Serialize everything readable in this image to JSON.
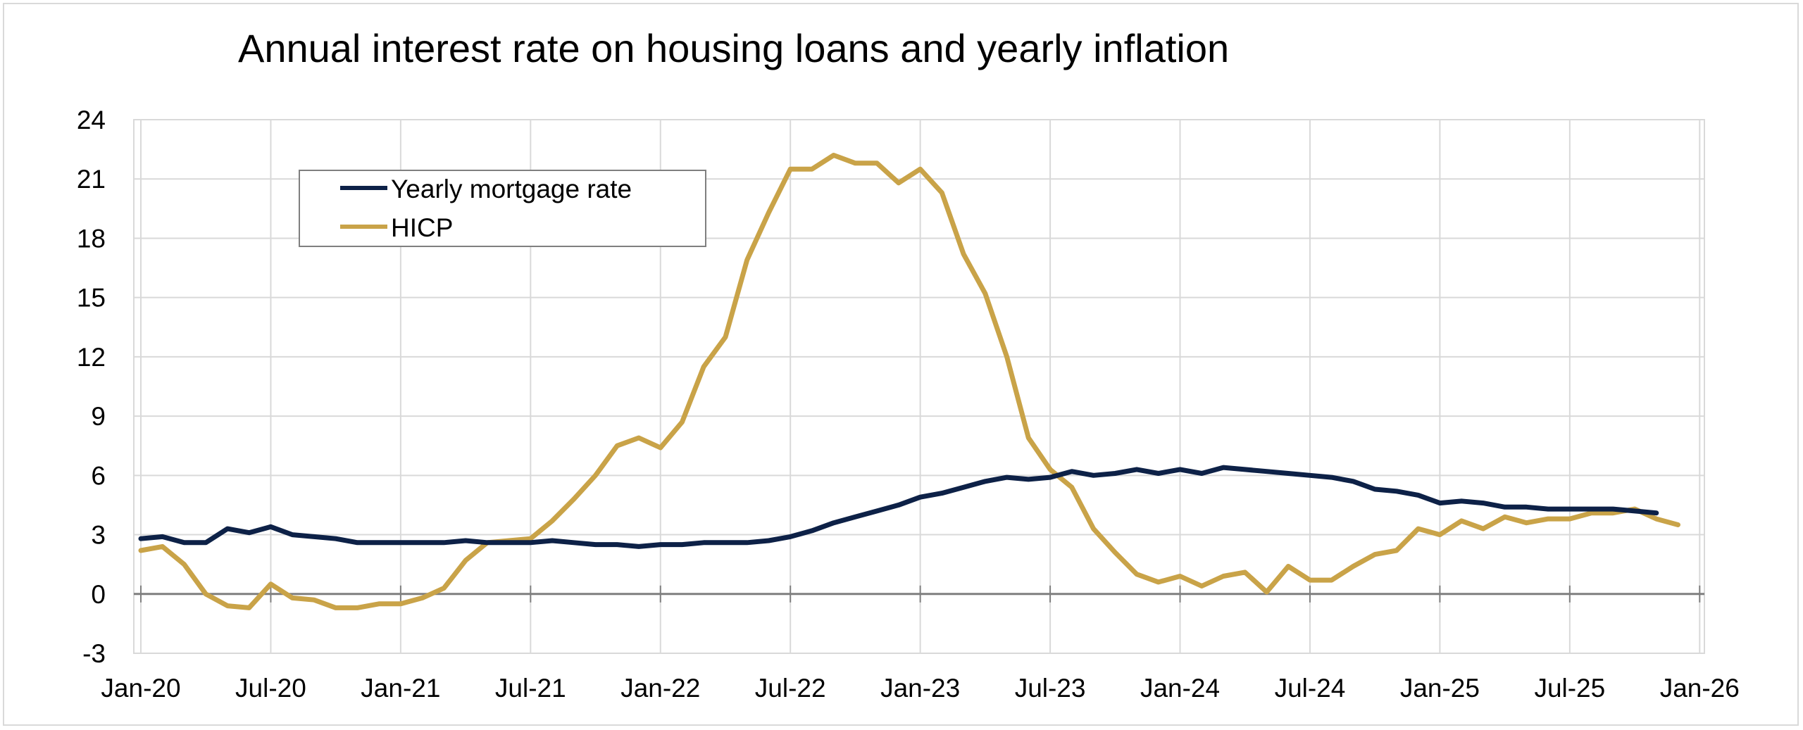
{
  "chart_data": {
    "type": "line",
    "title": "Annual interest rate on housing loans and yearly inflation",
    "xlabel": "",
    "ylabel": "",
    "ylim": [
      -3,
      24
    ],
    "yticks": [
      -3,
      0,
      3,
      6,
      9,
      12,
      15,
      18,
      21,
      24
    ],
    "x_tick_labels": [
      "Jan-20",
      "Jul-20",
      "Jan-21",
      "Jul-21",
      "Jan-22",
      "Jul-22",
      "Jan-23",
      "Jul-23",
      "Jan-24",
      "Jul-24",
      "Jan-25",
      "Jul-25",
      "Jan-26"
    ],
    "grid": true,
    "legend_position": "top-left",
    "x": [
      "2020-01",
      "2020-02",
      "2020-03",
      "2020-04",
      "2020-05",
      "2020-06",
      "2020-07",
      "2020-08",
      "2020-09",
      "2020-10",
      "2020-11",
      "2020-12",
      "2021-01",
      "2021-02",
      "2021-03",
      "2021-04",
      "2021-05",
      "2021-06",
      "2021-07",
      "2021-08",
      "2021-09",
      "2021-10",
      "2021-11",
      "2021-12",
      "2022-01",
      "2022-02",
      "2022-03",
      "2022-04",
      "2022-05",
      "2022-06",
      "2022-07",
      "2022-08",
      "2022-09",
      "2022-10",
      "2022-11",
      "2022-12",
      "2023-01",
      "2023-02",
      "2023-03",
      "2023-04",
      "2023-05",
      "2023-06",
      "2023-07",
      "2023-08",
      "2023-09",
      "2023-10",
      "2023-11",
      "2023-12",
      "2024-01",
      "2024-02",
      "2024-03",
      "2024-04",
      "2024-05",
      "2024-06",
      "2024-07",
      "2024-08",
      "2024-09",
      "2024-10",
      "2024-11",
      "2024-12",
      "2025-01",
      "2025-02",
      "2025-03",
      "2025-04",
      "2025-05",
      "2025-06",
      "2025-07",
      "2025-08",
      "2025-09",
      "2025-10",
      "2025-11",
      "2025-12"
    ],
    "series": [
      {
        "name": "Yearly mortgage rate",
        "color": "#0d2147",
        "values": [
          2.8,
          2.9,
          2.6,
          2.6,
          3.3,
          3.1,
          3.4,
          3.0,
          2.9,
          2.8,
          2.6,
          2.6,
          2.6,
          2.6,
          2.6,
          2.7,
          2.6,
          2.6,
          2.6,
          2.7,
          2.6,
          2.5,
          2.5,
          2.4,
          2.5,
          2.5,
          2.6,
          2.6,
          2.6,
          2.7,
          2.9,
          3.2,
          3.6,
          3.9,
          4.2,
          4.5,
          4.9,
          5.1,
          5.4,
          5.7,
          5.9,
          5.8,
          5.9,
          6.2,
          6.0,
          6.1,
          6.3,
          6.1,
          6.3,
          6.1,
          6.4,
          6.3,
          6.2,
          6.1,
          6.0,
          5.9,
          5.7,
          5.3,
          5.2,
          5.0,
          4.6,
          4.7,
          4.6,
          4.4,
          4.4,
          4.3,
          4.3,
          4.3,
          4.3,
          4.2,
          4.1,
          null
        ]
      },
      {
        "name": "HICP",
        "color": "#c9a348",
        "values": [
          2.2,
          2.4,
          1.5,
          0.0,
          -0.6,
          -0.7,
          0.5,
          -0.2,
          -0.3,
          -0.7,
          -0.7,
          -0.5,
          -0.5,
          -0.2,
          0.3,
          1.7,
          2.6,
          2.7,
          2.8,
          3.7,
          4.8,
          6.0,
          7.5,
          7.9,
          7.4,
          8.7,
          11.5,
          13.0,
          16.9,
          19.3,
          21.5,
          21.5,
          22.2,
          21.8,
          21.8,
          20.8,
          21.5,
          20.3,
          17.2,
          15.2,
          12.0,
          7.9,
          6.3,
          5.4,
          3.3,
          2.1,
          1.0,
          0.6,
          0.9,
          0.4,
          0.9,
          1.1,
          0.1,
          1.4,
          0.7,
          0.7,
          1.4,
          2.0,
          2.2,
          3.3,
          3.0,
          3.7,
          3.3,
          3.9,
          3.6,
          3.8,
          3.8,
          4.1,
          4.1,
          4.3,
          3.8,
          3.5
        ]
      }
    ]
  }
}
